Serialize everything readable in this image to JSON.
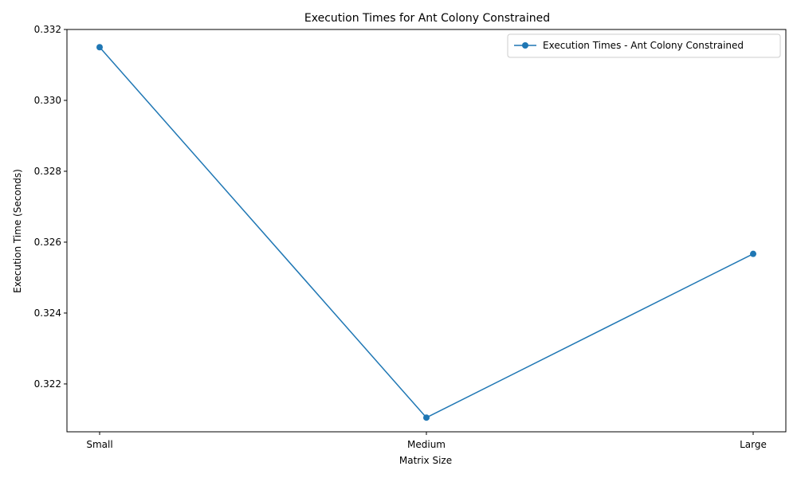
{
  "chart_data": {
    "type": "line",
    "title": "Execution Times for Ant Colony Constrained",
    "xlabel": "Matrix Size",
    "ylabel": "Execution Time (Seconds)",
    "categories": [
      "Small",
      "Medium",
      "Large"
    ],
    "series": [
      {
        "name": "Execution Times - Ant Colony Constrained",
        "values": [
          0.3315,
          0.32105,
          0.32567
        ],
        "color": "#1f77b4",
        "marker": "circle"
      }
    ],
    "ylim": [
      0.32065,
      0.332
    ],
    "yticks": [
      0.322,
      0.324,
      0.326,
      0.328,
      0.33,
      0.332
    ],
    "ytick_labels": [
      "0.322",
      "0.324",
      "0.326",
      "0.328",
      "0.330",
      "0.332"
    ],
    "grid": false,
    "legend_position": "top-right"
  }
}
